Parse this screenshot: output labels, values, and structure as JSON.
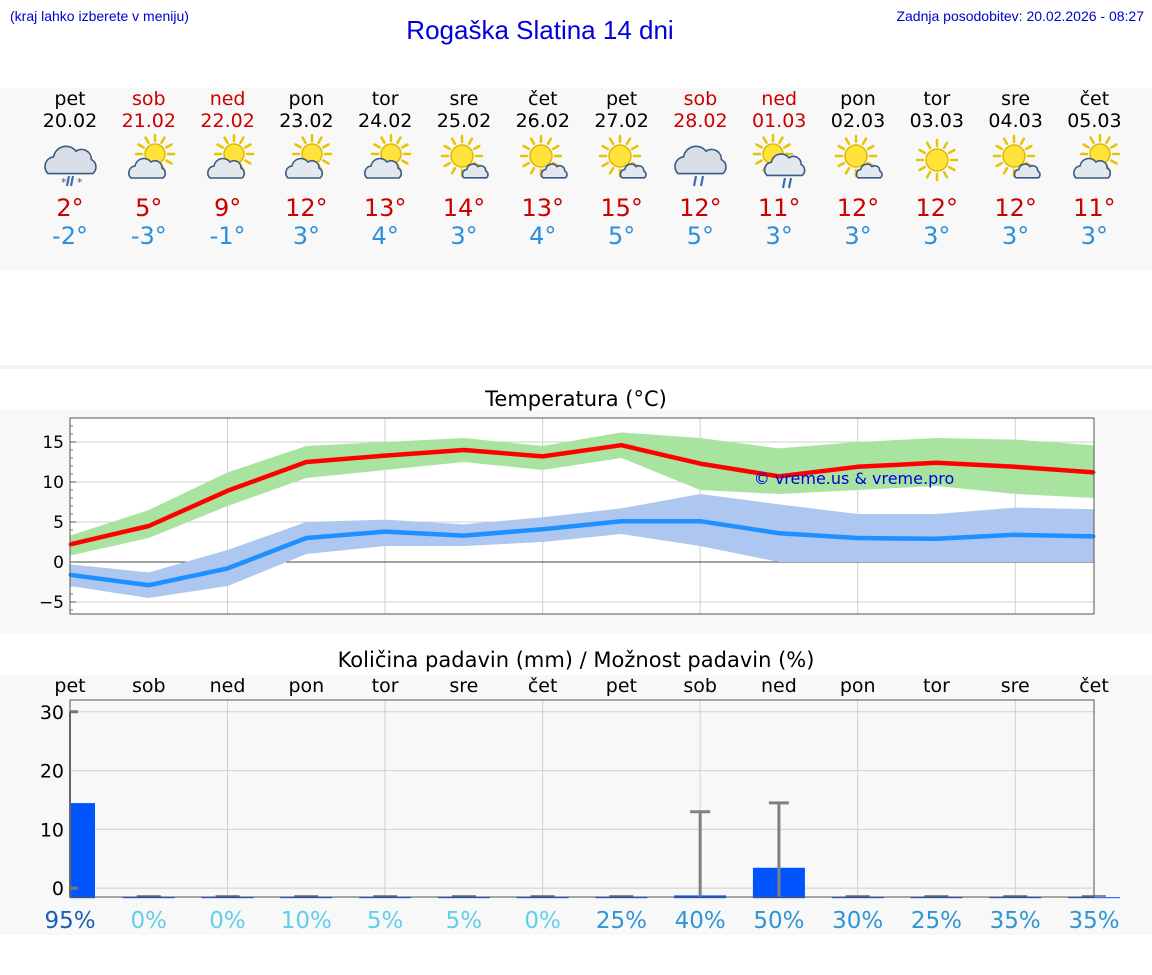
{
  "header": {
    "note": "(kraj lahko izberete v meniju)",
    "title": "Rogaška Slatina 14 dni",
    "updated": "Zadnja posodobitev: 20.02.2026 - 08:27"
  },
  "colors": {
    "max_line": "#ff0000",
    "max_band": "#a8e4a0",
    "min_line": "#1e90ff",
    "min_band": "#aec7f0",
    "precip_bar": "#0055ff",
    "error_bar": "#808080",
    "weekend": "#cc0000"
  },
  "days": [
    {
      "name": "pet",
      "date": "20.02",
      "weekend": false,
      "icon": "snow-rain-cloud-icon",
      "tmax": "2°",
      "tmin": "-2°"
    },
    {
      "name": "sob",
      "date": "21.02",
      "weekend": true,
      "icon": "sun-cloud-icon",
      "tmax": "5°",
      "tmin": "-3°"
    },
    {
      "name": "ned",
      "date": "22.02",
      "weekend": true,
      "icon": "sun-cloud-icon",
      "tmax": "9°",
      "tmin": "-1°"
    },
    {
      "name": "pon",
      "date": "23.02",
      "weekend": false,
      "icon": "sun-cloud-icon",
      "tmax": "12°",
      "tmin": "3°"
    },
    {
      "name": "tor",
      "date": "24.02",
      "weekend": false,
      "icon": "sun-cloud-icon",
      "tmax": "13°",
      "tmin": "4°"
    },
    {
      "name": "sre",
      "date": "25.02",
      "weekend": false,
      "icon": "sun-small-cloud-icon",
      "tmax": "14°",
      "tmin": "3°"
    },
    {
      "name": "čet",
      "date": "26.02",
      "weekend": false,
      "icon": "sun-small-cloud-icon",
      "tmax": "13°",
      "tmin": "4°"
    },
    {
      "name": "pet",
      "date": "27.02",
      "weekend": false,
      "icon": "sun-small-cloud-icon",
      "tmax": "15°",
      "tmin": "5°"
    },
    {
      "name": "sob",
      "date": "28.02",
      "weekend": true,
      "icon": "rain-cloud-icon",
      "tmax": "12°",
      "tmin": "5°"
    },
    {
      "name": "ned",
      "date": "01.03",
      "weekend": true,
      "icon": "sun-rain-cloud-icon",
      "tmax": "11°",
      "tmin": "3°"
    },
    {
      "name": "pon",
      "date": "02.03",
      "weekend": false,
      "icon": "sun-small-cloud-icon",
      "tmax": "12°",
      "tmin": "3°"
    },
    {
      "name": "tor",
      "date": "03.03",
      "weekend": false,
      "icon": "sun-icon",
      "tmax": "12°",
      "tmin": "3°"
    },
    {
      "name": "sre",
      "date": "04.03",
      "weekend": false,
      "icon": "sun-small-cloud-icon",
      "tmax": "12°",
      "tmin": "3°"
    },
    {
      "name": "čet",
      "date": "05.03",
      "weekend": false,
      "icon": "sun-cloud-icon",
      "tmax": "11°",
      "tmin": "3°"
    }
  ],
  "chart_data": [
    {
      "type": "line",
      "title": "Temperatura (°C)",
      "xlabel": "",
      "ylabel": "",
      "x": [
        0,
        1,
        2,
        3,
        4,
        5,
        6,
        7,
        8,
        9,
        10,
        11,
        12,
        13
      ],
      "ylim": [
        -6.5,
        18
      ],
      "yticks": [
        -5,
        0,
        5,
        10,
        15
      ],
      "watermark": "© vreme.us & vreme.pro",
      "series": [
        {
          "name": "max",
          "values": [
            2.2,
            4.5,
            8.9,
            12.5,
            13.3,
            14.0,
            13.2,
            14.6,
            12.3,
            10.7,
            11.9,
            12.4,
            11.9,
            11.2
          ],
          "band_low": [
            0.8,
            3.0,
            7.0,
            10.5,
            11.5,
            12.5,
            11.5,
            13.0,
            9.0,
            8.5,
            9.0,
            9.5,
            8.5,
            8.0
          ],
          "band_high": [
            3.3,
            6.5,
            11.2,
            14.5,
            15.0,
            15.5,
            14.5,
            16.2,
            15.5,
            14.2,
            15.0,
            15.5,
            15.3,
            14.6
          ]
        },
        {
          "name": "min",
          "values": [
            -1.6,
            -2.9,
            -0.8,
            3.0,
            3.8,
            3.3,
            4.1,
            5.1,
            5.1,
            3.6,
            3.0,
            2.9,
            3.4,
            3.2
          ],
          "band_low": [
            -3.0,
            -4.5,
            -3.0,
            1.0,
            2.0,
            2.0,
            2.5,
            3.5,
            2.0,
            0.0,
            0.0,
            0.0,
            0.0,
            0.0
          ],
          "band_high": [
            -0.3,
            -1.3,
            1.5,
            5.0,
            5.3,
            4.7,
            5.6,
            6.7,
            8.5,
            7.2,
            6.0,
            6.0,
            6.8,
            6.6
          ]
        }
      ]
    },
    {
      "type": "bar",
      "title": "Količina padavin (mm) / Možnost padavin (%)",
      "categories": [
        "pet",
        "sob",
        "ned",
        "pon",
        "tor",
        "sre",
        "čet",
        "pet",
        "sob",
        "ned",
        "pon",
        "tor",
        "sre",
        "čet"
      ],
      "values": [
        16,
        0,
        0,
        0,
        0,
        0,
        0,
        0,
        0.3,
        5,
        0,
        0,
        0,
        0
      ],
      "error_high": [
        null,
        null,
        null,
        null,
        null,
        null,
        null,
        null,
        13,
        14.5,
        null,
        null,
        null,
        null
      ],
      "probability": [
        "95%",
        "0%",
        "0%",
        "10%",
        "5%",
        "5%",
        "0%",
        "25%",
        "40%",
        "50%",
        "30%",
        "25%",
        "35%",
        "35%"
      ],
      "ylim": [
        -1.5,
        32
      ],
      "yticks": [
        0,
        10,
        20,
        30
      ]
    }
  ]
}
